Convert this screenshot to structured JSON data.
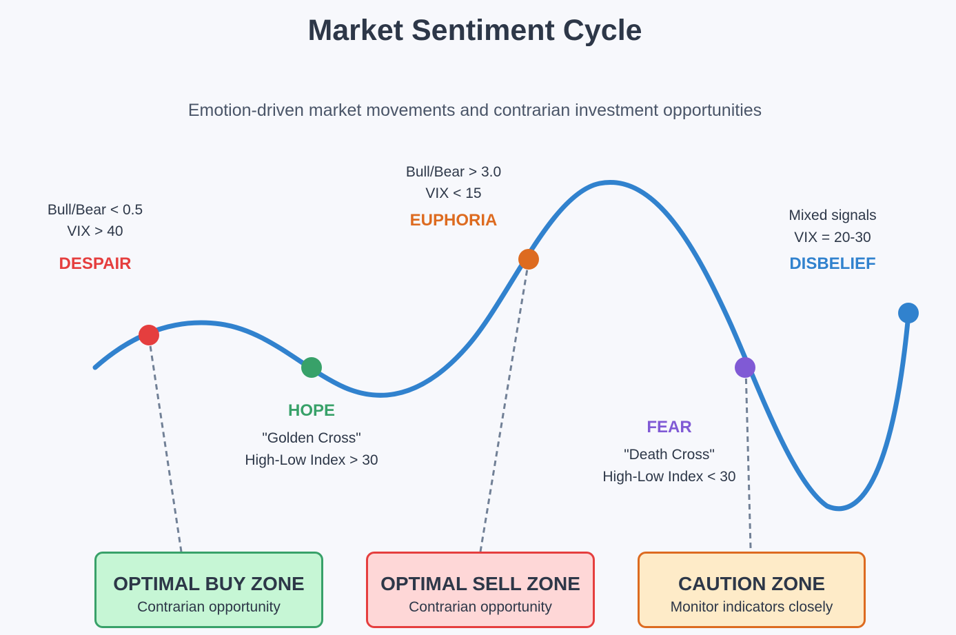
{
  "title": "Market Sentiment Cycle",
  "subtitle": "Emotion-driven market movements and contrarian investment opportunities",
  "colors": {
    "curve": "#3182ce",
    "despair": "#e53e3e",
    "hope": "#38a169",
    "euphoria": "#dd6b20",
    "fear": "#805ad5",
    "disbelief": "#3182ce",
    "leader": "#718096"
  },
  "phases": {
    "despair": {
      "label": "DESPAIR",
      "metric1": "Bull/Bear < 0.5",
      "metric2": "VIX > 40"
    },
    "hope": {
      "label": "HOPE",
      "metric1": "\"Golden Cross\"",
      "metric2": "High-Low Index > 30"
    },
    "euphoria": {
      "label": "EUPHORIA",
      "metric1": "Bull/Bear > 3.0",
      "metric2": "VIX < 15"
    },
    "fear": {
      "label": "FEAR",
      "metric1": "\"Death Cross\"",
      "metric2": "High-Low Index < 30"
    },
    "disbelief": {
      "label": "DISBELIEF",
      "metric1": "Mixed signals",
      "metric2": "VIX = 20-30"
    }
  },
  "zones": {
    "buy": {
      "title": "OPTIMAL BUY ZONE",
      "subtitle": "Contrarian opportunity",
      "bg": "#c6f6d5",
      "border": "#38a169"
    },
    "sell": {
      "title": "OPTIMAL SELL ZONE",
      "subtitle": "Contrarian opportunity",
      "bg": "#fed7d7",
      "border": "#e53e3e"
    },
    "caution": {
      "title": "CAUTION ZONE",
      "subtitle": "Monitor indicators closely",
      "bg": "#feebc8",
      "border": "#dd6b20"
    }
  }
}
